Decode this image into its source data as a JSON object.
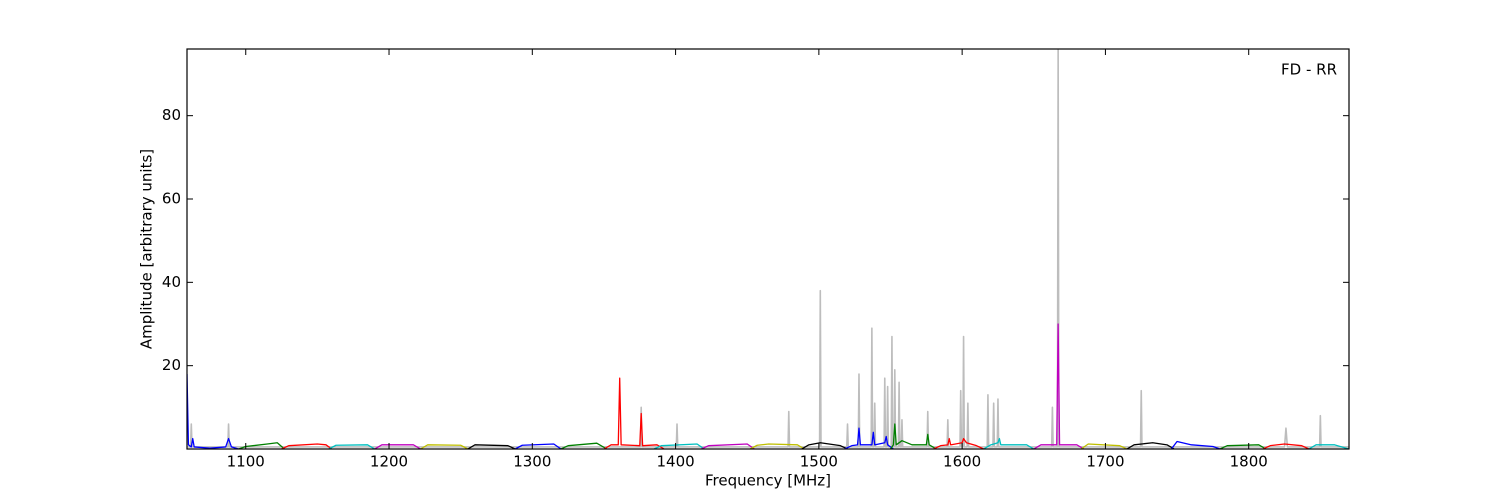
{
  "chart_data": {
    "type": "line",
    "annotation": "FD - RR",
    "x_label": "Frequency [MHz]",
    "y_label": "Amplitude [arbitrary units]",
    "xlim": [
      1059,
      1870
    ],
    "ylim": [
      0,
      96
    ],
    "xticks": [
      1100,
      1200,
      1300,
      1400,
      1500,
      1600,
      1700,
      1800
    ],
    "yticks": [
      20,
      40,
      60,
      80
    ],
    "series": [
      {
        "color": "#bdbdbd",
        "x": [
          1059,
          1061.5,
          1062,
          1062.5,
          1087.5,
          1088,
          1088.5,
          1375.5,
          1376,
          1376.5,
          1400.5,
          1401,
          1401.5,
          1478.5,
          1479,
          1479.5,
          1500.5,
          1501,
          1501.5,
          1519.5,
          1520,
          1520.5,
          1527.5,
          1528,
          1528.5,
          1536.5,
          1537,
          1537.5,
          1538.5,
          1539,
          1539.5,
          1545.5,
          1546,
          1546.5,
          1547.5,
          1548,
          1548.5,
          1550.5,
          1551,
          1551.5,
          1552.5,
          1553,
          1553.5,
          1555.5,
          1556,
          1556.5,
          1557.5,
          1558,
          1558.5,
          1575.5,
          1576,
          1576.5,
          1589.5,
          1590,
          1590.5,
          1598.5,
          1599,
          1599.5,
          1600.5,
          1601,
          1601.5,
          1603.5,
          1604,
          1604.5,
          1617.5,
          1618,
          1618.5,
          1621.5,
          1622,
          1622.5,
          1624.5,
          1625,
          1625.5,
          1662.5,
          1663,
          1663.5,
          1666.5,
          1667,
          1667.5,
          1724.5,
          1725,
          1725.5,
          1825,
          1826,
          1827,
          1849.5,
          1850,
          1850.5,
          1870
        ],
        "values": [
          0.5,
          0.5,
          6,
          0.5,
          0.5,
          6,
          0.5,
          0.5,
          10,
          0.5,
          0.5,
          6,
          0.5,
          0.5,
          9,
          0.5,
          0.5,
          38,
          0.5,
          0.5,
          6,
          0.5,
          0.5,
          18,
          0.5,
          0.5,
          29,
          0.5,
          0.5,
          11,
          0.5,
          0.5,
          17,
          0.5,
          0.5,
          15,
          0.5,
          0.5,
          27,
          0.5,
          0.5,
          19,
          0.5,
          0.5,
          16,
          0.5,
          0.5,
          7,
          0.5,
          0.5,
          9,
          0.5,
          0.5,
          7,
          0.5,
          0.5,
          14,
          0.5,
          0.5,
          27,
          0.5,
          0.5,
          11,
          0.5,
          0.5,
          13,
          0.5,
          0.5,
          11,
          0.5,
          0.5,
          12,
          0.5,
          0.5,
          10,
          0.5,
          0.5,
          96,
          0.5,
          0.5,
          14,
          0.5,
          0.5,
          5,
          0.5,
          0.5,
          8,
          0.5,
          0.5
        ]
      },
      {
        "color": "#0000ff",
        "x": [
          1059,
          1060,
          1062,
          1063,
          1064,
          1075,
          1086,
          1088,
          1090,
          1095
        ],
        "values": [
          18,
          1,
          0.5,
          2.5,
          0.5,
          0.2,
          0.5,
          2.5,
          0.5,
          0
        ]
      },
      {
        "color": "#008000",
        "x": [
          1095,
          1100,
          1115,
          1122,
          1127
        ],
        "values": [
          0,
          0.6,
          1.2,
          1.5,
          0
        ]
      },
      {
        "color": "#ff0000",
        "x": [
          1125,
          1130,
          1150,
          1156,
          1160
        ],
        "values": [
          0,
          0.8,
          1.2,
          1,
          0
        ]
      },
      {
        "color": "#00bfbf",
        "x": [
          1158,
          1163,
          1185,
          1190
        ],
        "values": [
          0,
          0.9,
          1,
          0
        ]
      },
      {
        "color": "#bf00bf",
        "x": [
          1190,
          1195,
          1217,
          1222
        ],
        "values": [
          0,
          1,
          1,
          0
        ]
      },
      {
        "color": "#bfbf00",
        "x": [
          1222,
          1227,
          1250,
          1255
        ],
        "values": [
          0,
          1,
          0.9,
          0
        ]
      },
      {
        "color": "#000000",
        "x": [
          1255,
          1260,
          1283,
          1288
        ],
        "values": [
          0,
          1,
          0.8,
          0
        ]
      },
      {
        "color": "#0000ff",
        "x": [
          1288,
          1293,
          1315,
          1320
        ],
        "values": [
          0,
          0.9,
          1.2,
          0
        ]
      },
      {
        "color": "#008000",
        "x": [
          1320,
          1325,
          1345,
          1352
        ],
        "values": [
          0,
          0.8,
          1.4,
          0
        ]
      },
      {
        "color": "#ff0000",
        "x": [
          1350,
          1355,
          1360,
          1361,
          1362,
          1375,
          1376,
          1377,
          1387,
          1392
        ],
        "values": [
          0,
          1,
          1,
          17,
          1,
          0.8,
          8.5,
          0.8,
          1,
          0
        ]
      },
      {
        "color": "#00bfbf",
        "x": [
          1385,
          1390,
          1415,
          1420
        ],
        "values": [
          0,
          0.8,
          1.2,
          0
        ]
      },
      {
        "color": "#bf00bf",
        "x": [
          1418,
          1423,
          1450,
          1455
        ],
        "values": [
          0,
          0.8,
          1.2,
          0
        ]
      },
      {
        "color": "#bfbf00",
        "x": [
          1452,
          1457,
          1465,
          1485,
          1490
        ],
        "values": [
          0,
          0.9,
          1.2,
          1,
          0
        ]
      },
      {
        "color": "#000000",
        "x": [
          1488,
          1493,
          1501,
          1515,
          1520
        ],
        "values": [
          0,
          1,
          1.5,
          0.8,
          0
        ]
      },
      {
        "color": "#0000ff",
        "x": [
          1518,
          1523,
          1527,
          1528,
          1529,
          1537,
          1538,
          1539,
          1546,
          1547,
          1548,
          1552
        ],
        "values": [
          0,
          0.8,
          1,
          5,
          1,
          1,
          4,
          1,
          1.5,
          3,
          1,
          0
        ]
      },
      {
        "color": "#008000",
        "x": [
          1550,
          1552,
          1553,
          1554,
          1558,
          1565,
          1575,
          1576,
          1577,
          1582
        ],
        "values": [
          0,
          1,
          6,
          1,
          2,
          1,
          1,
          3.5,
          1,
          0
        ]
      },
      {
        "color": "#ff0000",
        "x": [
          1580,
          1585,
          1590,
          1591,
          1592,
          1600,
          1601,
          1603,
          1610,
          1615
        ],
        "values": [
          0,
          0.8,
          1,
          2.5,
          1,
          1.5,
          2.5,
          1.5,
          0.8,
          0
        ]
      },
      {
        "color": "#00bfbf",
        "x": [
          1615,
          1620,
          1625,
          1626,
          1627,
          1645,
          1650
        ],
        "values": [
          0,
          1,
          1.5,
          2.5,
          1,
          1,
          0
        ]
      },
      {
        "color": "#bf00bf",
        "x": [
          1650,
          1655,
          1666,
          1667,
          1668,
          1680,
          1685
        ],
        "values": [
          0,
          1,
          1,
          30,
          1,
          1,
          0
        ]
      },
      {
        "color": "#bfbf00",
        "x": [
          1683,
          1688,
          1710,
          1715
        ],
        "values": [
          0,
          1.2,
          0.8,
          0
        ]
      },
      {
        "color": "#000000",
        "x": [
          1715,
          1720,
          1733,
          1743,
          1748
        ],
        "values": [
          0,
          1,
          1.5,
          1,
          0
        ]
      },
      {
        "color": "#0000ff",
        "x": [
          1746,
          1750,
          1760,
          1775,
          1780
        ],
        "values": [
          0,
          1.8,
          1,
          0.6,
          0
        ]
      },
      {
        "color": "#008000",
        "x": [
          1780,
          1785,
          1807,
          1812
        ],
        "values": [
          0,
          0.8,
          1,
          0
        ]
      },
      {
        "color": "#ff0000",
        "x": [
          1810,
          1815,
          1825,
          1837,
          1842
        ],
        "values": [
          0,
          0.8,
          1.2,
          0.8,
          0
        ]
      },
      {
        "color": "#00bfbf",
        "x": [
          1842,
          1847,
          1860,
          1870
        ],
        "values": [
          0,
          1,
          1,
          0
        ]
      }
    ]
  }
}
